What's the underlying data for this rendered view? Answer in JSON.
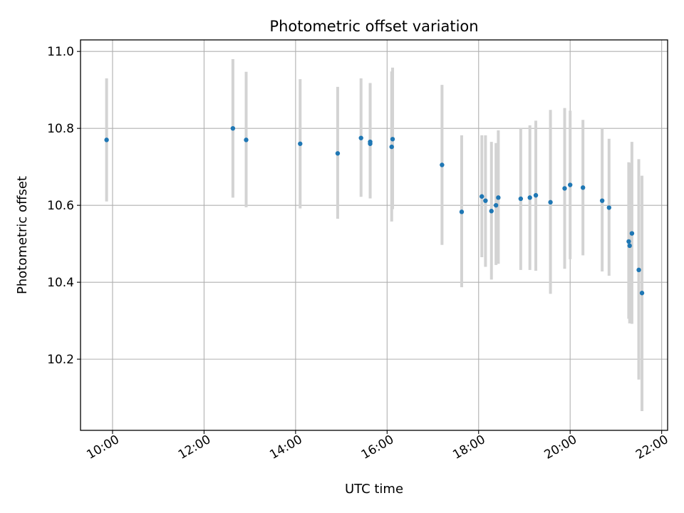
{
  "chart_data": {
    "type": "scatter",
    "title": "Photometric offset variation",
    "xlabel": "UTC time",
    "ylabel": "Photometric offset",
    "x_unit": "UTC hour",
    "xlim": [
      9.3,
      22.13
    ],
    "ylim": [
      10.015,
      11.03
    ],
    "x_ticks": [
      10,
      12,
      14,
      16,
      18,
      20,
      22
    ],
    "x_tick_labels": [
      "10:00",
      "12:00",
      "14:00",
      "16:00",
      "18:00",
      "20:00",
      "22:00"
    ],
    "y_ticks": [
      10.2,
      10.4,
      10.6,
      10.8,
      11.0
    ],
    "y_tick_labels": [
      "10.2",
      "10.4",
      "10.6",
      "10.8",
      "11.0"
    ],
    "grid": true,
    "colors": {
      "points": "#1f77b4",
      "errorbars": "#d3d3d3",
      "grid": "#b0b0b0"
    },
    "series": [
      {
        "x": [
          9.87,
          12.63,
          12.92,
          14.1,
          14.92,
          15.43,
          15.63,
          15.63,
          16.1,
          16.12,
          17.2,
          17.63,
          18.07,
          18.15,
          18.28,
          18.38,
          18.43,
          18.92,
          19.12,
          19.25,
          19.57,
          19.88,
          20.0,
          20.28,
          20.7,
          20.85,
          21.28,
          21.3,
          21.35,
          21.5,
          21.57
        ],
        "y": [
          10.77,
          10.8,
          10.77,
          10.76,
          10.735,
          10.775,
          10.765,
          10.76,
          10.752,
          10.772,
          10.705,
          10.583,
          10.623,
          10.612,
          10.585,
          10.6,
          10.62,
          10.617,
          10.62,
          10.626,
          10.608,
          10.644,
          10.653,
          10.646,
          10.612,
          10.594,
          10.506,
          10.495,
          10.527,
          10.432,
          10.372
        ],
        "y_low": [
          10.61,
          10.62,
          10.595,
          10.592,
          10.565,
          10.622,
          10.618,
          10.618,
          10.558,
          10.59,
          10.497,
          10.387,
          10.465,
          10.44,
          10.407,
          10.445,
          10.448,
          10.432,
          10.432,
          10.43,
          10.37,
          10.435,
          10.46,
          10.47,
          10.428,
          10.417,
          10.305,
          10.293,
          10.292,
          10.147,
          10.065
        ],
        "y_high": [
          10.93,
          10.98,
          10.947,
          10.928,
          10.908,
          10.93,
          10.918,
          10.918,
          10.948,
          10.958,
          10.913,
          10.782,
          10.782,
          10.782,
          10.765,
          10.762,
          10.795,
          10.8,
          10.808,
          10.82,
          10.848,
          10.853,
          10.846,
          10.822,
          10.8,
          10.773,
          10.712,
          10.71,
          10.765,
          10.72,
          10.677
        ]
      }
    ]
  }
}
